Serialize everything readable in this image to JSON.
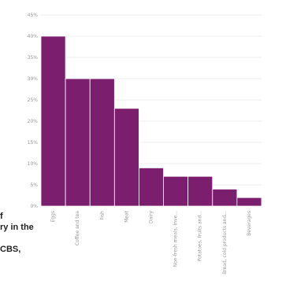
{
  "chart_data": {
    "type": "bar",
    "categories": [
      "Eggs",
      "Coffee and tea",
      "Fish",
      "Meat",
      "Dairy",
      "Non-fresh meals, inve...",
      "Potatoes, fruits and...",
      "Bread, cold products and...",
      "Beverages"
    ],
    "values": [
      40,
      30,
      30,
      23,
      9,
      7,
      7,
      4,
      2
    ],
    "y_ticks": [
      "0%",
      "5%",
      "10%",
      "15%",
      "20%",
      "25%",
      "30%",
      "35%",
      "40%",
      "45%"
    ],
    "ylim": [
      0,
      45
    ],
    "y_unit": "%",
    "grid": true,
    "title": "",
    "xlabel": "",
    "ylabel": "",
    "bar_color": "#7b1e6e",
    "bar_edge_color": "#ffffff",
    "grid_color": "#e6e6e6",
    "tick_text_color": "#9a9a9a"
  },
  "side_text": {
    "line1": "f",
    "line2": "ry in the",
    "line3": "CBS,"
  }
}
